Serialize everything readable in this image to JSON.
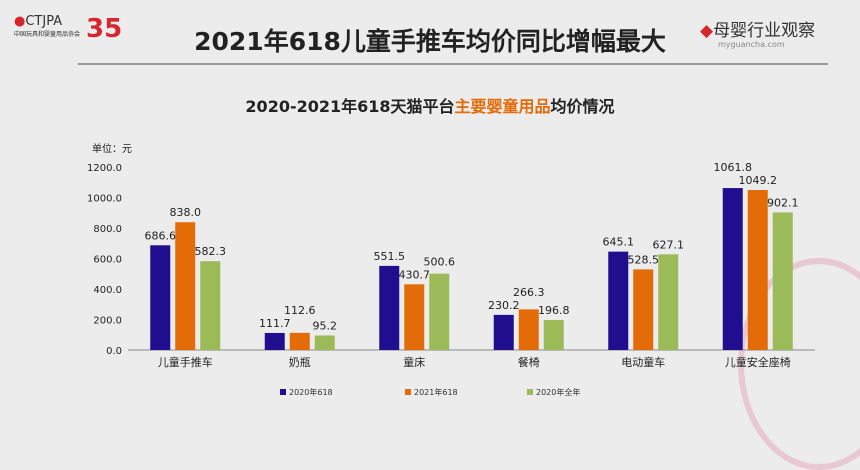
{
  "header": {
    "title": "2021年618儿童手推车均价同比增幅最大",
    "logo_left": "CTJPA",
    "logo_left_sub": "中国玩具和婴童用品协会",
    "logo_35": "35",
    "logo_right": "母婴行业观察",
    "logo_right_sub": "myguancha.com"
  },
  "colors": {
    "s2020_618": "#1f0f8f",
    "s2021_618": "#e36c09",
    "s2020_full": "#9bbb59"
  },
  "chart_data": {
    "type": "bar",
    "title_parts": [
      "2020-2021年618天猫平台",
      "主要婴童用品",
      "均价情况"
    ],
    "ylabel": "单位：元",
    "ylim": [
      0,
      1200
    ],
    "yticks": [
      "0.0",
      "200.0",
      "400.0",
      "600.0",
      "800.0",
      "1000.0",
      "1200.0"
    ],
    "categories": [
      "儿童手推车",
      "奶瓶",
      "童床",
      "餐椅",
      "电动童车",
      "儿童安全座椅"
    ],
    "series": [
      {
        "name": "2020年618",
        "values": [
          686.6,
          111.7,
          551.5,
          230.2,
          645.1,
          1061.8
        ]
      },
      {
        "name": "2021年618",
        "values": [
          838.0,
          112.6,
          430.7,
          266.3,
          528.5,
          1049.2
        ]
      },
      {
        "name": "2020年全年",
        "values": [
          582.3,
          95.2,
          500.6,
          196.8,
          627.1,
          902.1
        ]
      }
    ],
    "legend": "bottom",
    "grid": false
  }
}
